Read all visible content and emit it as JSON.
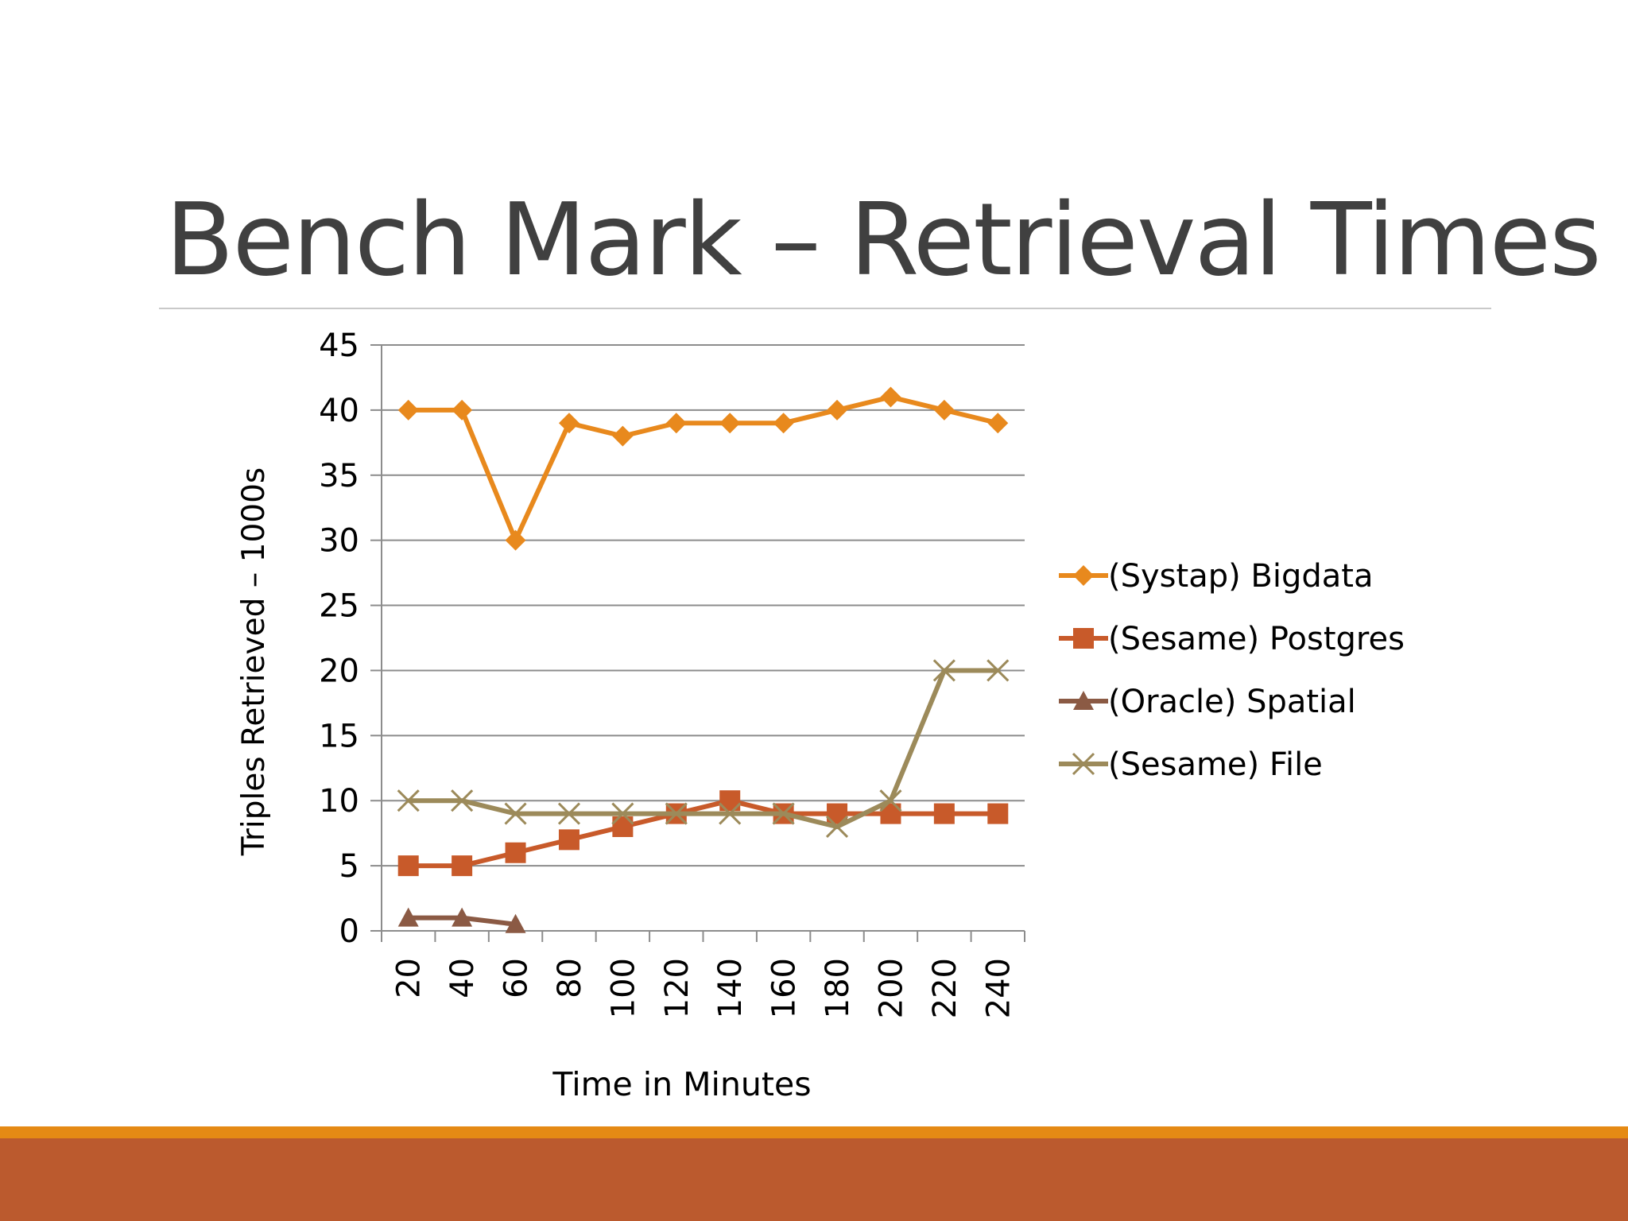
{
  "slide": {
    "title": "Bench Mark – Retrieval Times"
  },
  "colors": {
    "bigdata": "#e8891d",
    "postgres": "#c85a2a",
    "spatial": "#8b5a44",
    "file": "#9c8a5a",
    "band_top": "#e58a14",
    "band_bottom": "#bb5a2e",
    "grid": "#8c8c8c"
  },
  "chart_data": {
    "type": "line",
    "title": "",
    "xlabel": "Time in Minutes",
    "ylabel": "Triples Retrieved – 1000s",
    "ylim": [
      0,
      45
    ],
    "yticks": [
      "0",
      "5",
      "10",
      "15",
      "20",
      "25",
      "30",
      "35",
      "40",
      "45"
    ],
    "categories": [
      "20",
      "40",
      "60",
      "80",
      "100",
      "120",
      "140",
      "160",
      "180",
      "200",
      "220",
      "240"
    ],
    "grid": "horizontal",
    "legend_position": "right",
    "series": [
      {
        "name": "(Systap) Bigdata",
        "marker": "diamond",
        "values": [
          40,
          40,
          30,
          39,
          38,
          39,
          39,
          39,
          40,
          41,
          40,
          39
        ]
      },
      {
        "name": "(Sesame) Postgres",
        "marker": "square",
        "values": [
          5,
          5,
          6,
          7,
          8,
          9,
          10,
          9,
          9,
          9,
          9,
          9
        ]
      },
      {
        "name": "(Oracle) Spatial",
        "marker": "triangle",
        "values": [
          1,
          1,
          0.5,
          null,
          null,
          null,
          null,
          null,
          null,
          null,
          null,
          null
        ]
      },
      {
        "name": "(Sesame) File",
        "marker": "x",
        "values": [
          10,
          10,
          9,
          9,
          9,
          9,
          9,
          9,
          8,
          10,
          20,
          20
        ]
      }
    ]
  }
}
